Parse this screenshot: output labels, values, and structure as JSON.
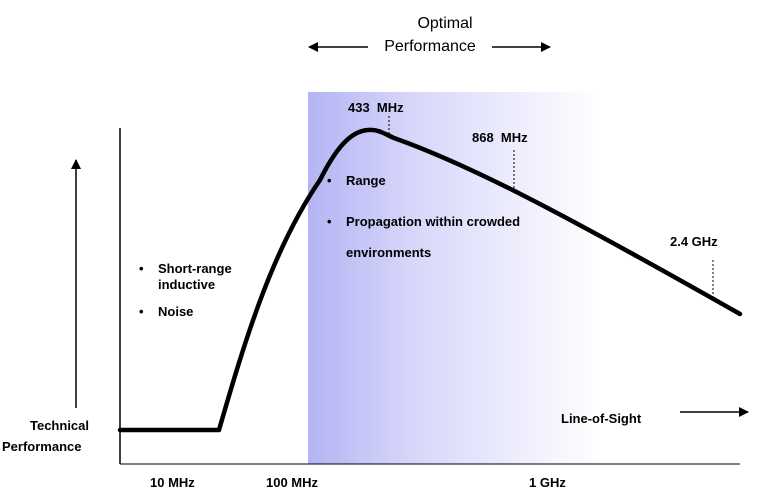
{
  "title": {
    "line1": "Optimal",
    "line2": "Performance"
  },
  "y_axis_label": {
    "line1": "Technical",
    "line2": "Performance"
  },
  "x_axis_arrow_label": "Line-of-Sight",
  "x_ticks": [
    "10 MHz",
    "100 MHz",
    "1 GHz"
  ],
  "markers": [
    "433  MHz",
    "868  MHz",
    "2.4 GHz"
  ],
  "left_bullets": [
    "Short-range inductive",
    "Noise"
  ],
  "optimal_bullets": [
    "Range",
    "Propagation within crowded environments"
  ],
  "colors": {
    "curve": "#000000",
    "band_start": "#b4b4f4",
    "band_end": "#ffffff"
  }
}
